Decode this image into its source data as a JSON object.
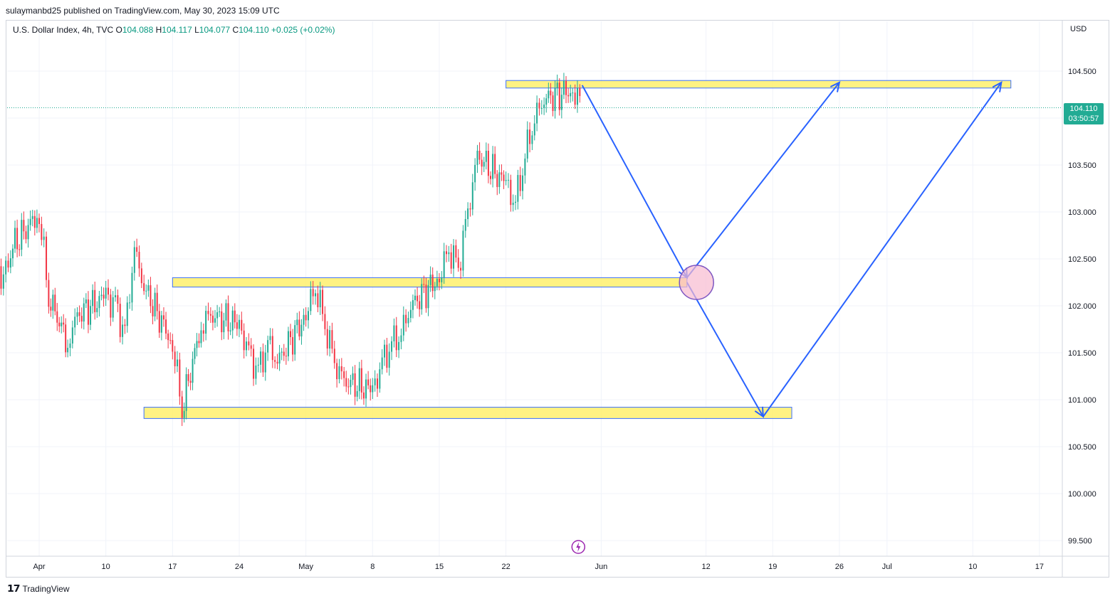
{
  "header": {
    "publish_line": "sulaymanbd25 published on TradingView.com, May 30, 2023 15:09 UTC"
  },
  "legend": {
    "symbol": "U.S. Dollar Index, 4h, TVC",
    "o_label": "O",
    "o_value": "104.088",
    "h_label": "H",
    "h_value": "104.117",
    "l_label": "L",
    "l_value": "104.077",
    "c_label": "C",
    "c_value": "104.110",
    "change": "+0.025 (+0.02%)"
  },
  "price_scale": {
    "currency": "USD",
    "last_price": "104.110",
    "countdown": "03:50:57"
  },
  "footer": {
    "brand": "TradingView"
  },
  "colors": {
    "up": "#22ab94",
    "down": "#f23645",
    "zone_fill": "#fff176",
    "zone_border": "#2962ff",
    "arrow": "#2962ff",
    "circle_fill": "#f8bbd0",
    "circle_border": "#7e57c2",
    "grid": "#f0f3fa"
  },
  "chart_data": {
    "type": "line",
    "title": "U.S. Dollar Index, 4h, TVC",
    "ylim": [
      99.4,
      104.8
    ],
    "y_ticks": [
      "104.500",
      "104.000",
      "103.500",
      "103.000",
      "102.500",
      "102.000",
      "101.500",
      "101.000",
      "100.500",
      "100.000",
      "99.500"
    ],
    "x_ticks": [
      "Apr",
      "10",
      "17",
      "24",
      "May",
      "8",
      "15",
      "22",
      "Jun",
      "12",
      "19",
      "26",
      "Jul",
      "10",
      "17"
    ],
    "x_tick_dates": [
      "2023-04-03",
      "2023-04-10",
      "2023-04-17",
      "2023-04-24",
      "2023-05-01",
      "2023-05-08",
      "2023-05-15",
      "2023-05-22",
      "2023-06-01",
      "2023-06-12",
      "2023-06-19",
      "2023-06-26",
      "2023-07-01",
      "2023-07-10",
      "2023-07-17"
    ],
    "series": [
      {
        "type": "candlestick-approx",
        "dates": [
          "2023-03-28",
          "2023-03-30",
          "2023-03-31",
          "2023-04-03",
          "2023-04-04",
          "2023-04-06",
          "2023-04-07",
          "2023-04-10",
          "2023-04-11",
          "2023-04-12",
          "2023-04-13",
          "2023-04-14",
          "2023-04-17",
          "2023-04-18",
          "2023-04-20",
          "2023-04-21",
          "2023-04-24",
          "2023-04-25",
          "2023-04-26",
          "2023-04-27",
          "2023-04-28",
          "2023-05-01",
          "2023-05-02",
          "2023-05-03",
          "2023-05-04",
          "2023-05-05",
          "2023-05-08",
          "2023-05-09",
          "2023-05-10",
          "2023-05-11",
          "2023-05-12",
          "2023-05-15",
          "2023-05-16",
          "2023-05-17",
          "2023-05-18",
          "2023-05-19",
          "2023-05-22",
          "2023-05-23",
          "2023-05-24",
          "2023-05-25",
          "2023-05-26",
          "2023-05-29",
          "2023-05-30"
        ],
        "close": [
          102.7,
          102.2,
          102.6,
          103.0,
          102.1,
          101.6,
          101.9,
          102.1,
          102.0,
          101.7,
          102.6,
          102.2,
          101.6,
          100.9,
          101.8,
          101.9,
          101.8,
          101.5,
          101.3,
          101.6,
          101.4,
          101.9,
          102.2,
          101.8,
          101.4,
          101.2,
          101.1,
          101.4,
          101.6,
          101.7,
          102.0,
          102.3,
          102.6,
          102.4,
          103.0,
          103.6,
          103.3,
          103.1,
          103.6,
          104.0,
          104.2,
          104.3,
          104.11
        ]
      }
    ],
    "zones": [
      {
        "from_date": "2023-05-22",
        "to_date": "2023-07-14",
        "low": 104.32,
        "high": 104.4
      },
      {
        "from_date": "2023-04-17",
        "to_date": "2023-06-10",
        "low": 102.2,
        "high": 102.3
      },
      {
        "from_date": "2023-04-14",
        "to_date": "2023-06-21",
        "low": 100.8,
        "high": 100.92
      }
    ],
    "projection_path": [
      {
        "date": "2023-05-30",
        "value": 104.35
      },
      {
        "date": "2023-06-10",
        "value": 102.3
      },
      {
        "date": "2023-06-26",
        "value": 104.38
      }
    ],
    "projection_path_2": [
      {
        "date": "2023-06-10",
        "value": 102.25
      },
      {
        "date": "2023-06-18",
        "value": 100.82
      },
      {
        "date": "2023-07-13",
        "value": 104.38
      }
    ],
    "current_price": 104.11
  }
}
